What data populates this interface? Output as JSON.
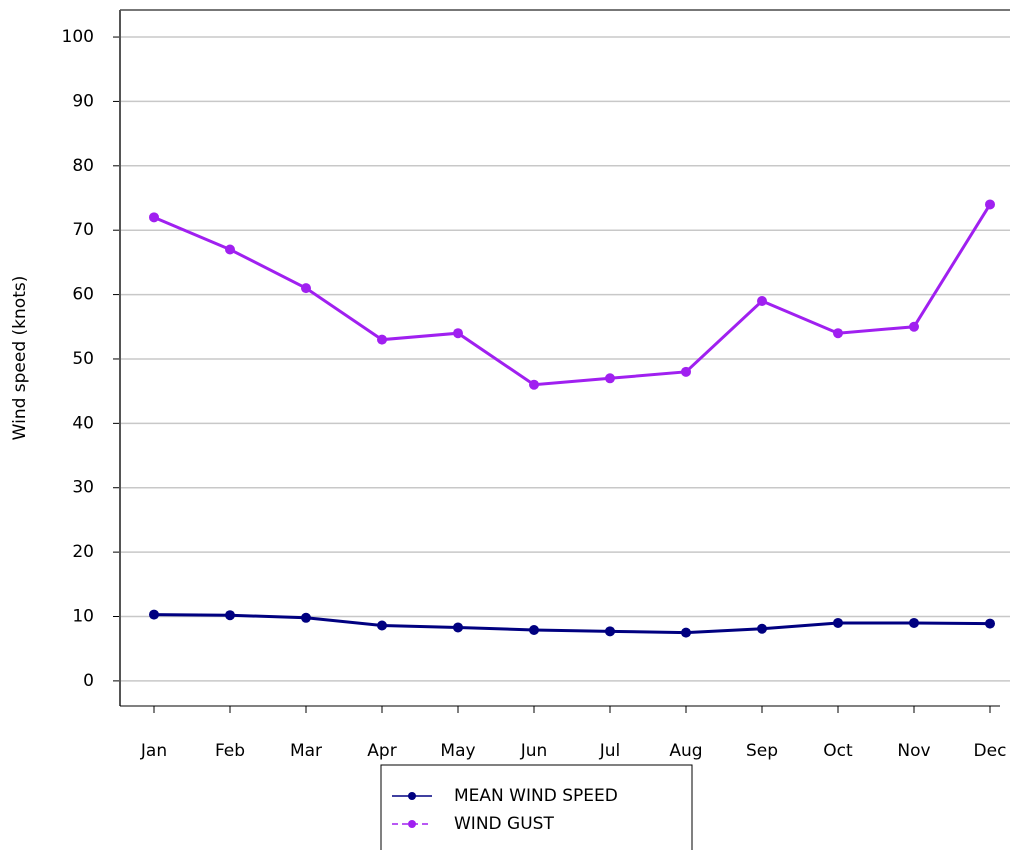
{
  "chart_data": {
    "type": "line",
    "y_label": "Wind speed (knots)",
    "categories": [
      "Jan",
      "Feb",
      "Mar",
      "Apr",
      "May",
      "Jun",
      "Jul",
      "Aug",
      "Sep",
      "Oct",
      "Nov",
      "Dec"
    ],
    "series": [
      {
        "name": "MEAN WIND SPEED",
        "color": "#000080",
        "values": [
          10.3,
          10.2,
          9.8,
          8.6,
          8.3,
          7.9,
          7.7,
          7.5,
          8.1,
          9.0,
          9.0,
          8.9
        ]
      },
      {
        "name": "WIND GUST",
        "color": "#a020f0",
        "values": [
          72,
          67,
          61,
          53,
          54,
          46,
          47,
          48,
          59,
          54,
          55,
          74
        ]
      }
    ],
    "ylim": [
      -3.9,
      104.2
    ],
    "yticks": [
      0,
      10,
      20,
      30,
      40,
      50,
      60,
      70,
      80,
      90,
      100
    ],
    "grid": true
  }
}
